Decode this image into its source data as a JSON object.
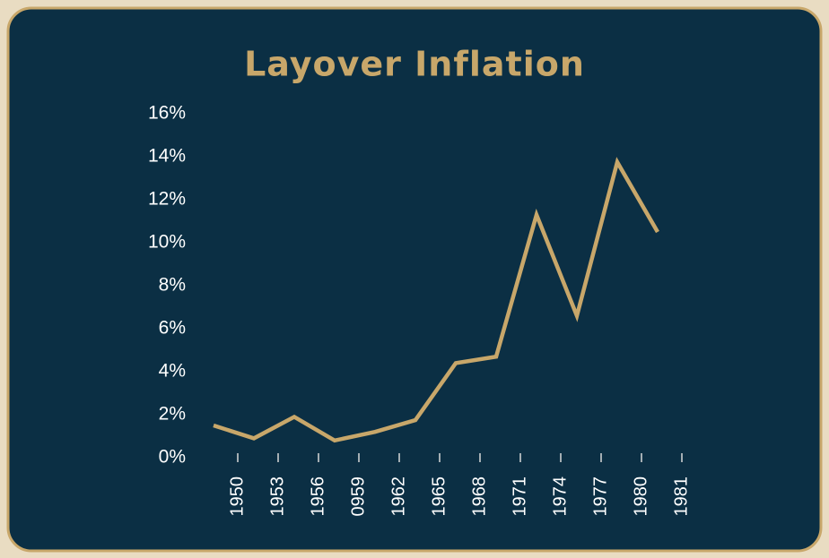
{
  "chart_data": {
    "type": "line",
    "title": "Layover Inflation",
    "categories": [
      "1950",
      "1953",
      "1956",
      "0959",
      "1962",
      "1965",
      "1968",
      "1971",
      "1974",
      "1977",
      "1980",
      "1981"
    ],
    "series": [
      {
        "name": "Inflation",
        "color": "#c8a76a",
        "values": [
          1.5,
          0.9,
          1.9,
          0.8,
          1.2,
          1.75,
          4.4,
          4.7,
          11.3,
          6.6,
          13.75,
          10.5
        ]
      }
    ],
    "ylim": [
      0,
      16
    ],
    "yticks": [
      {
        "value": 0,
        "label": "0%"
      },
      {
        "value": 2,
        "label": "2%"
      },
      {
        "value": 4,
        "label": "4%"
      },
      {
        "value": 6,
        "label": "6%"
      },
      {
        "value": 8,
        "label": "8%"
      },
      {
        "value": 10,
        "label": "10%"
      },
      {
        "value": 12,
        "label": "12%"
      },
      {
        "value": 14,
        "label": "14%"
      },
      {
        "value": 16,
        "label": "16%"
      }
    ]
  }
}
